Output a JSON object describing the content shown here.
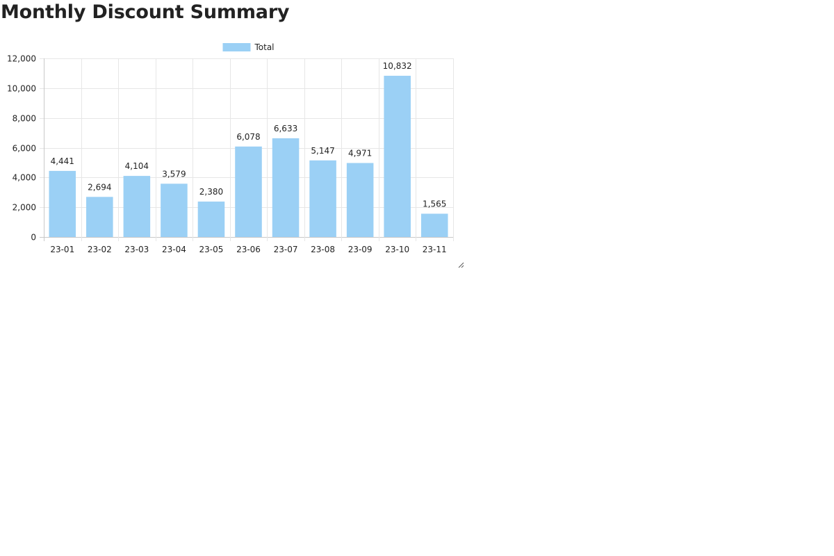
{
  "page": {
    "title": "Monthly Discount Summary"
  },
  "chart_data": {
    "type": "bar",
    "title": "",
    "xlabel": "",
    "ylabel": "",
    "categories": [
      "23-01",
      "23-02",
      "23-03",
      "23-04",
      "23-05",
      "23-06",
      "23-07",
      "23-08",
      "23-09",
      "23-10",
      "23-11"
    ],
    "series": [
      {
        "name": "Total",
        "values": [
          4441,
          2694,
          4104,
          3579,
          2380,
          6078,
          6633,
          5147,
          4971,
          10832,
          1565
        ],
        "color": "#9bd0f5"
      }
    ],
    "ylim": [
      0,
      12000
    ],
    "yticks": [
      0,
      2000,
      4000,
      6000,
      8000,
      10000,
      12000
    ],
    "grid": true,
    "legend_position": "top-center",
    "data_labels": true
  }
}
